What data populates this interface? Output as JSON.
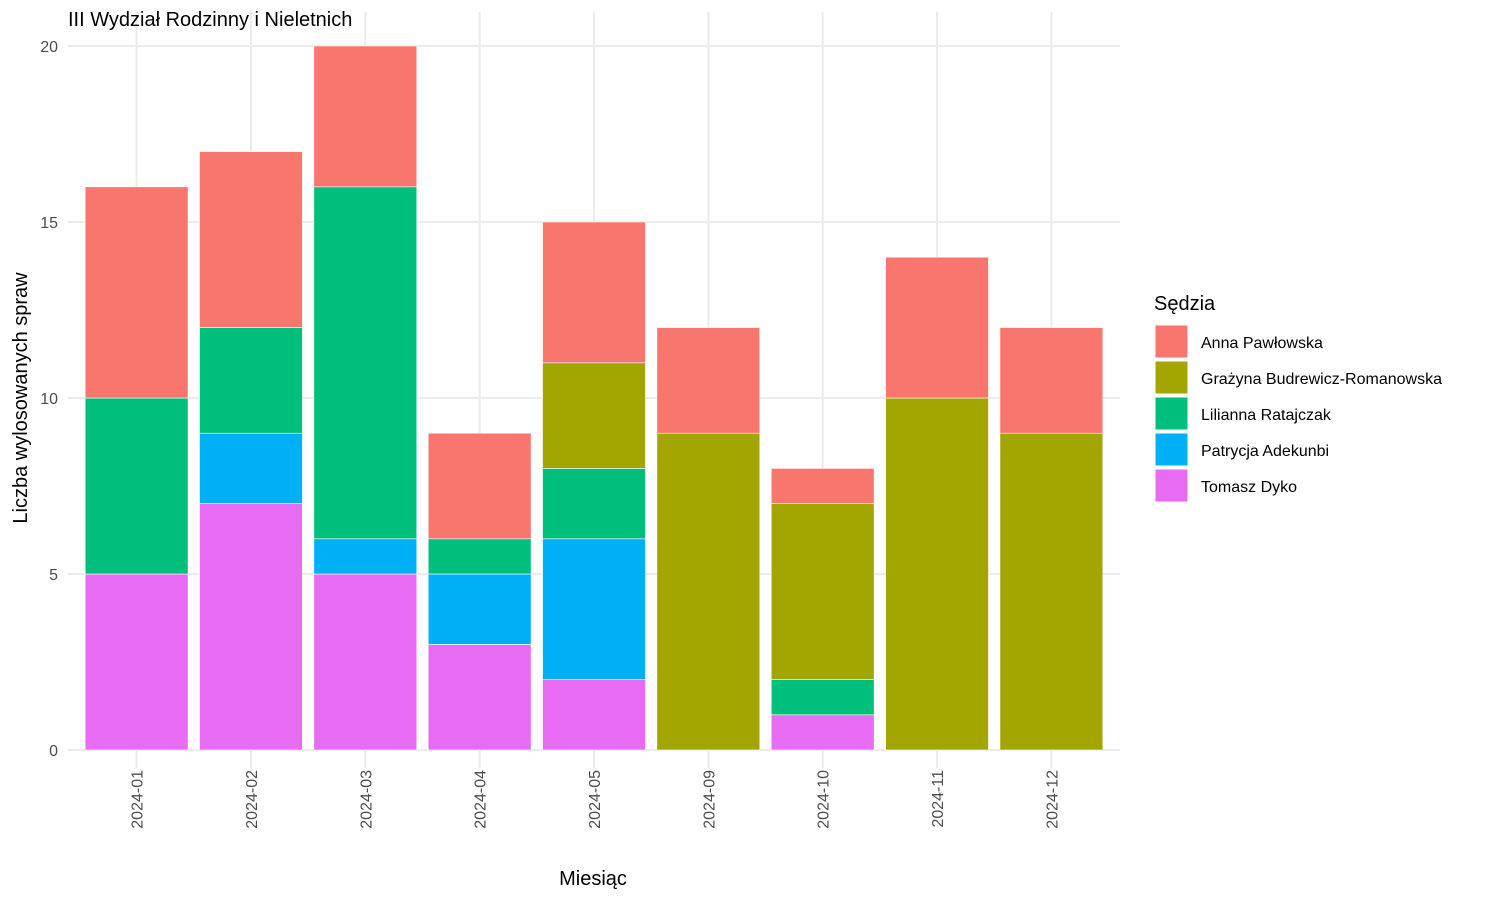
{
  "chart_data": {
    "type": "bar",
    "stacked": true,
    "title": "III Wydział Rodzinny i Nieletnich",
    "xlabel": "Miesiąc",
    "ylabel": "Liczba wylosowanych spraw",
    "ylim": [
      0,
      20
    ],
    "yticks": [
      0,
      5,
      10,
      15,
      20
    ],
    "grid": true,
    "legend_title": "Sędzia",
    "legend_position": "right",
    "categories": [
      "2024-01",
      "2024-02",
      "2024-03",
      "2024-04",
      "2024-05",
      "2024-09",
      "2024-10",
      "2024-11",
      "2024-12"
    ],
    "series": [
      {
        "name": "Tomasz Dyko",
        "color": "#E76BF3",
        "values": [
          5,
          7,
          5,
          3,
          2,
          0,
          1,
          0,
          0
        ]
      },
      {
        "name": "Patrycja Adekunbi",
        "color": "#00B0F6",
        "values": [
          0,
          2,
          1,
          2,
          4,
          0,
          0,
          0,
          0
        ]
      },
      {
        "name": "Lilianna Ratajczak",
        "color": "#00BF7D",
        "values": [
          5,
          3,
          10,
          1,
          2,
          0,
          1,
          0,
          0
        ]
      },
      {
        "name": "Grażyna Budrewicz-Romanowska",
        "color": "#A3A500",
        "values": [
          0,
          0,
          0,
          0,
          3,
          9,
          5,
          10,
          9
        ]
      },
      {
        "name": "Anna Pawłowska",
        "color": "#F8766D",
        "values": [
          6,
          5,
          4,
          3,
          4,
          3,
          1,
          4,
          3
        ]
      }
    ],
    "legend_order": [
      "Anna Pawłowska",
      "Grażyna Budrewicz-Romanowska",
      "Lilianna Ratajczak",
      "Patrycja Adekunbi",
      "Tomasz Dyko"
    ]
  }
}
